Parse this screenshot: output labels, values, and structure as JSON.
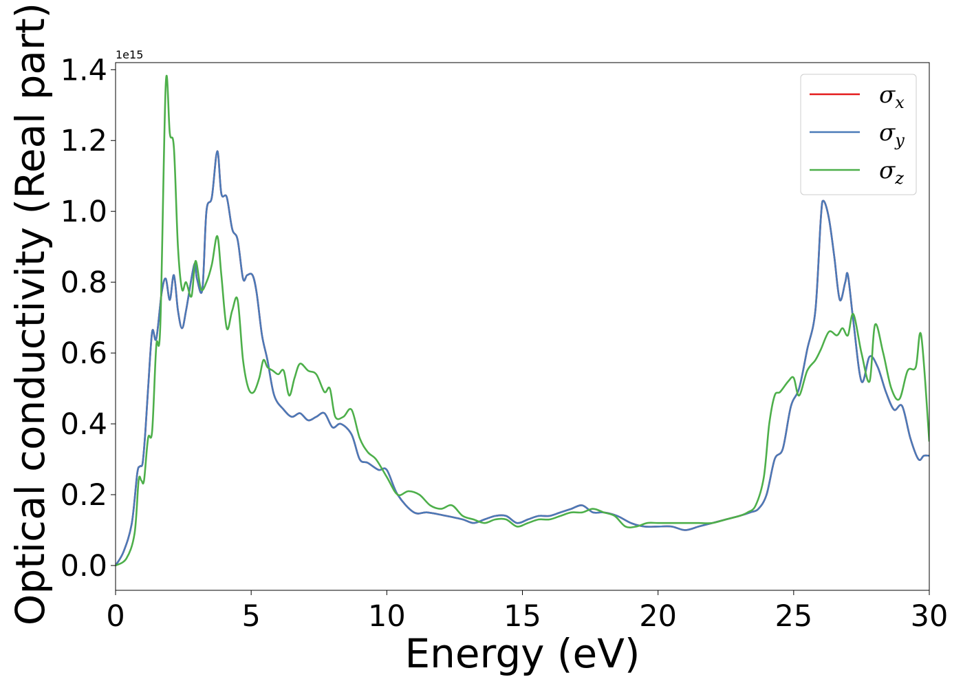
{
  "chart_data": {
    "type": "line",
    "title": "",
    "xlabel": "Energy (eV)",
    "ylabel": "Optical conductivity (Real part)",
    "y_offset_text": "1e15",
    "xlim": [
      0,
      30
    ],
    "ylim": [
      -0.07,
      1.42
    ],
    "x_ticks": [
      0,
      5,
      10,
      15,
      20,
      25,
      30
    ],
    "x_tick_labels": [
      "0",
      "5",
      "10",
      "15",
      "20",
      "25",
      "30"
    ],
    "y_ticks": [
      0.0,
      0.2,
      0.4,
      0.6,
      0.8,
      1.0,
      1.2,
      1.4
    ],
    "y_tick_labels": [
      "0.0",
      "0.2",
      "0.4",
      "0.6",
      "0.8",
      "1.0",
      "1.2",
      "1.4"
    ],
    "grid": false,
    "legend_position": "top-right",
    "series": [
      {
        "name": "σ",
        "sub": "x",
        "color": "#e41a1c",
        "x": [
          0,
          0.3,
          0.6,
          0.8,
          0.9,
          1.0,
          1.1,
          1.2,
          1.35,
          1.5,
          1.7,
          1.85,
          2.0,
          2.15,
          2.3,
          2.45,
          2.6,
          2.9,
          3.0,
          3.2,
          3.35,
          3.55,
          3.75,
          3.9,
          4.1,
          4.3,
          4.5,
          4.7,
          4.85,
          5.05,
          5.2,
          5.4,
          5.6,
          5.85,
          6.2,
          6.5,
          6.8,
          7.1,
          7.4,
          7.7,
          8.0,
          8.3,
          8.7,
          9.0,
          9.3,
          9.7,
          10.0,
          10.4,
          11.0,
          11.5,
          12.2,
          12.8,
          13.2,
          13.6,
          14.0,
          14.4,
          14.8,
          15.2,
          15.6,
          16.0,
          16.4,
          16.8,
          17.2,
          17.6,
          18.0,
          18.5,
          19.0,
          19.5,
          20.0,
          20.5,
          21.0,
          21.5,
          22.0,
          22.5,
          23.0,
          23.4,
          23.7,
          24.0,
          24.3,
          24.6,
          24.9,
          25.2,
          25.5,
          25.8,
          26.0,
          26.1,
          26.3,
          26.5,
          26.7,
          26.9,
          27.0,
          27.2,
          27.5,
          27.8,
          28.1,
          28.4,
          28.7,
          29.0,
          29.3,
          29.6,
          29.8,
          30.0
        ],
        "y": [
          0.0,
          0.04,
          0.12,
          0.26,
          0.28,
          0.29,
          0.38,
          0.5,
          0.66,
          0.64,
          0.77,
          0.81,
          0.75,
          0.82,
          0.72,
          0.67,
          0.72,
          0.85,
          0.81,
          0.78,
          1.0,
          1.04,
          1.17,
          1.05,
          1.04,
          0.95,
          0.92,
          0.81,
          0.82,
          0.82,
          0.77,
          0.65,
          0.58,
          0.48,
          0.44,
          0.42,
          0.43,
          0.41,
          0.42,
          0.43,
          0.39,
          0.4,
          0.37,
          0.3,
          0.29,
          0.27,
          0.27,
          0.2,
          0.15,
          0.15,
          0.14,
          0.13,
          0.12,
          0.13,
          0.14,
          0.14,
          0.12,
          0.13,
          0.14,
          0.14,
          0.15,
          0.16,
          0.17,
          0.15,
          0.15,
          0.14,
          0.12,
          0.11,
          0.11,
          0.11,
          0.1,
          0.11,
          0.12,
          0.13,
          0.14,
          0.15,
          0.16,
          0.2,
          0.3,
          0.33,
          0.45,
          0.5,
          0.61,
          0.72,
          0.98,
          1.03,
          0.98,
          0.87,
          0.75,
          0.8,
          0.82,
          0.69,
          0.52,
          0.59,
          0.56,
          0.49,
          0.44,
          0.45,
          0.36,
          0.3,
          0.31,
          0.31
        ]
      },
      {
        "name": "σ",
        "sub": "y",
        "color": "#4a7ab8",
        "x": [
          0,
          0.3,
          0.6,
          0.8,
          0.9,
          1.0,
          1.1,
          1.2,
          1.35,
          1.5,
          1.7,
          1.85,
          2.0,
          2.15,
          2.3,
          2.45,
          2.6,
          2.9,
          3.0,
          3.2,
          3.35,
          3.55,
          3.75,
          3.9,
          4.1,
          4.3,
          4.5,
          4.7,
          4.85,
          5.05,
          5.2,
          5.4,
          5.6,
          5.85,
          6.2,
          6.5,
          6.8,
          7.1,
          7.4,
          7.7,
          8.0,
          8.3,
          8.7,
          9.0,
          9.3,
          9.7,
          10.0,
          10.4,
          11.0,
          11.5,
          12.2,
          12.8,
          13.2,
          13.6,
          14.0,
          14.4,
          14.8,
          15.2,
          15.6,
          16.0,
          16.4,
          16.8,
          17.2,
          17.6,
          18.0,
          18.5,
          19.0,
          19.5,
          20.0,
          20.5,
          21.0,
          21.5,
          22.0,
          22.5,
          23.0,
          23.4,
          23.7,
          24.0,
          24.3,
          24.6,
          24.9,
          25.2,
          25.5,
          25.8,
          26.0,
          26.1,
          26.3,
          26.5,
          26.7,
          26.9,
          27.0,
          27.2,
          27.5,
          27.8,
          28.1,
          28.4,
          28.7,
          29.0,
          29.3,
          29.6,
          29.8,
          30.0
        ],
        "y": [
          0.0,
          0.04,
          0.12,
          0.26,
          0.28,
          0.29,
          0.38,
          0.5,
          0.66,
          0.64,
          0.77,
          0.81,
          0.75,
          0.82,
          0.72,
          0.67,
          0.72,
          0.85,
          0.81,
          0.78,
          1.0,
          1.04,
          1.17,
          1.05,
          1.04,
          0.95,
          0.92,
          0.81,
          0.82,
          0.82,
          0.77,
          0.65,
          0.58,
          0.48,
          0.44,
          0.42,
          0.43,
          0.41,
          0.42,
          0.43,
          0.39,
          0.4,
          0.37,
          0.3,
          0.29,
          0.27,
          0.27,
          0.2,
          0.15,
          0.15,
          0.14,
          0.13,
          0.12,
          0.13,
          0.14,
          0.14,
          0.12,
          0.13,
          0.14,
          0.14,
          0.15,
          0.16,
          0.17,
          0.15,
          0.15,
          0.14,
          0.12,
          0.11,
          0.11,
          0.11,
          0.1,
          0.11,
          0.12,
          0.13,
          0.14,
          0.15,
          0.16,
          0.2,
          0.3,
          0.33,
          0.45,
          0.5,
          0.61,
          0.72,
          0.98,
          1.03,
          0.98,
          0.87,
          0.75,
          0.8,
          0.82,
          0.69,
          0.52,
          0.59,
          0.56,
          0.49,
          0.44,
          0.45,
          0.36,
          0.3,
          0.31,
          0.31
        ]
      },
      {
        "name": "σ",
        "sub": "z",
        "color": "#4daf4a",
        "x": [
          0,
          0.4,
          0.7,
          0.85,
          0.95,
          1.05,
          1.2,
          1.35,
          1.5,
          1.65,
          1.85,
          2.0,
          2.15,
          2.3,
          2.45,
          2.6,
          2.8,
          2.95,
          3.15,
          3.35,
          3.55,
          3.75,
          3.9,
          4.1,
          4.3,
          4.5,
          4.7,
          4.9,
          5.1,
          5.3,
          5.45,
          5.6,
          5.8,
          6.0,
          6.2,
          6.4,
          6.6,
          6.8,
          7.1,
          7.4,
          7.7,
          7.9,
          8.1,
          8.4,
          8.7,
          9.0,
          9.3,
          9.6,
          10.0,
          10.4,
          10.8,
          11.2,
          11.6,
          12.0,
          12.4,
          12.8,
          13.2,
          13.6,
          14.0,
          14.4,
          14.8,
          15.2,
          15.6,
          16.0,
          16.4,
          16.8,
          17.2,
          17.6,
          18.0,
          18.4,
          18.8,
          19.2,
          19.6,
          20.0,
          20.5,
          21.0,
          21.5,
          22.0,
          22.5,
          23.0,
          23.3,
          23.6,
          23.9,
          24.1,
          24.3,
          24.5,
          24.8,
          25.0,
          25.2,
          25.5,
          25.8,
          26.0,
          26.3,
          26.6,
          26.8,
          27.0,
          27.2,
          27.5,
          27.8,
          28.0,
          28.3,
          28.6,
          28.9,
          29.2,
          29.5,
          29.7,
          30.0
        ],
        "y": [
          0.0,
          0.02,
          0.09,
          0.24,
          0.24,
          0.24,
          0.36,
          0.38,
          0.62,
          0.68,
          1.36,
          1.22,
          1.18,
          0.9,
          0.78,
          0.8,
          0.76,
          0.86,
          0.78,
          0.8,
          0.85,
          0.93,
          0.82,
          0.67,
          0.72,
          0.75,
          0.58,
          0.5,
          0.49,
          0.53,
          0.58,
          0.56,
          0.55,
          0.54,
          0.55,
          0.48,
          0.53,
          0.57,
          0.55,
          0.54,
          0.49,
          0.5,
          0.42,
          0.42,
          0.44,
          0.36,
          0.32,
          0.3,
          0.25,
          0.2,
          0.21,
          0.2,
          0.17,
          0.16,
          0.17,
          0.14,
          0.13,
          0.12,
          0.13,
          0.13,
          0.11,
          0.12,
          0.13,
          0.13,
          0.14,
          0.15,
          0.15,
          0.16,
          0.15,
          0.14,
          0.11,
          0.11,
          0.12,
          0.12,
          0.12,
          0.12,
          0.12,
          0.12,
          0.13,
          0.14,
          0.15,
          0.17,
          0.25,
          0.4,
          0.48,
          0.49,
          0.52,
          0.53,
          0.48,
          0.55,
          0.58,
          0.61,
          0.66,
          0.65,
          0.67,
          0.65,
          0.71,
          0.6,
          0.52,
          0.68,
          0.6,
          0.5,
          0.47,
          0.55,
          0.56,
          0.65,
          0.35
        ]
      }
    ]
  }
}
